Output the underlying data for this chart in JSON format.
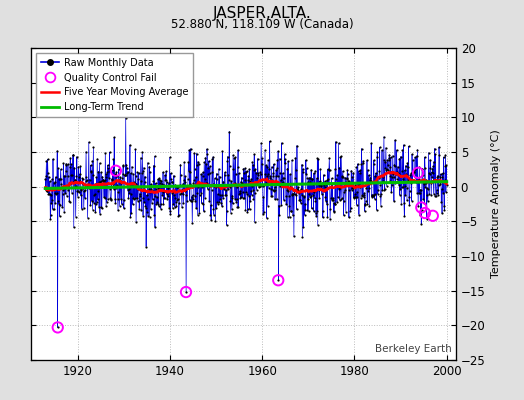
{
  "title": "JASPER,ALTA.",
  "subtitle": "52.880 N, 118.109 W (Canada)",
  "ylabel": "Temperature Anomaly (°C)",
  "watermark": "Berkeley Earth",
  "year_start": 1913,
  "year_end": 2000,
  "xlim": [
    1910,
    2002
  ],
  "ylim": [
    -25,
    20
  ],
  "yticks": [
    -25,
    -20,
    -15,
    -10,
    -5,
    0,
    5,
    10,
    15,
    20
  ],
  "xticks": [
    1920,
    1940,
    1960,
    1980,
    2000
  ],
  "bg_color": "#e0e0e0",
  "plot_bg_color": "#ffffff",
  "raw_line_color": "#0000dd",
  "raw_dot_color": "#000000",
  "moving_avg_color": "#ff0000",
  "trend_color": "#00bb00",
  "qc_fail_color": "#ff00ff",
  "seed": 42,
  "n_months_per_year": 12,
  "qc_fail_points": [
    {
      "year": 1915.7,
      "value": -20.3
    },
    {
      "year": 1928.3,
      "value": 2.3
    },
    {
      "year": 1943.5,
      "value": -15.2
    },
    {
      "year": 1963.5,
      "value": -13.5
    },
    {
      "year": 1993.8,
      "value": 2.0
    },
    {
      "year": 1994.5,
      "value": -3.0
    },
    {
      "year": 1995.3,
      "value": -3.8
    },
    {
      "year": 1997.0,
      "value": -4.2
    }
  ]
}
